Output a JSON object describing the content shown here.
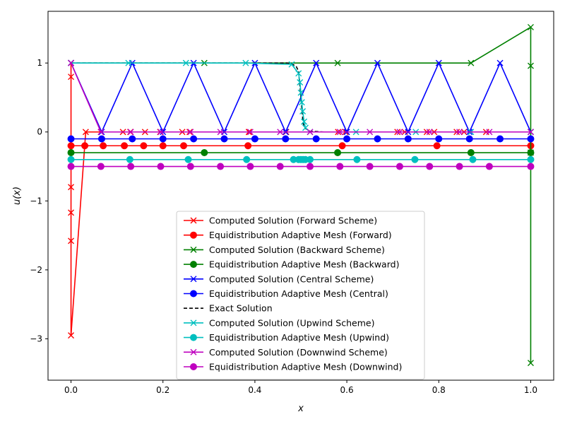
{
  "chart_data": {
    "type": "line",
    "xlabel": "x",
    "ylabel": "u(x)",
    "xlim": [
      -0.05,
      1.05
    ],
    "ylim": [
      -3.6,
      1.75
    ],
    "x_ticks": [
      0.0,
      0.2,
      0.4,
      0.6,
      0.8,
      1.0
    ],
    "x_tick_labels": [
      "0.0",
      "0.2",
      "0.4",
      "0.6",
      "0.8",
      "1.0"
    ],
    "y_ticks": [
      -3,
      -2,
      -1,
      0,
      1
    ],
    "y_tick_labels": [
      "−3",
      "−2",
      "−1",
      "0",
      "1"
    ],
    "grid": false,
    "legend_position": "bottom-center",
    "series": [
      {
        "name": "Computed Solution (Forward Scheme)",
        "color": "#ff0000",
        "marker": "x",
        "dash": "solid",
        "x": [
          0,
          0,
          0,
          0,
          0,
          0,
          0.032,
          0.065,
          0.113,
          0.129,
          0.161,
          0.194,
          0.242,
          0.258,
          0.387,
          0.387,
          0.468,
          0.581,
          0.597,
          0.71,
          0.726,
          0.774,
          0.79,
          0.839,
          0.855,
          0.903,
          1.0
        ],
        "y": [
          1.0,
          0.8,
          -0.8,
          -1.17,
          -1.58,
          -2.95,
          0,
          0,
          0,
          0,
          0,
          0,
          0,
          0,
          0,
          0,
          0,
          0,
          0,
          0,
          0,
          0,
          0,
          0,
          0,
          0,
          0
        ]
      },
      {
        "name": "Equidistribution Adaptive Mesh (Forward)",
        "color": "#ff0000",
        "marker": "o",
        "dash": "solid",
        "x": [
          0,
          0.03,
          0.07,
          0.116,
          0.158,
          0.2,
          0.245,
          0.385,
          0.59,
          0.796,
          1.0
        ],
        "y": [
          -0.2,
          -0.2,
          -0.2,
          -0.2,
          -0.2,
          -0.2,
          -0.2,
          -0.2,
          -0.2,
          -0.2,
          -0.2
        ]
      },
      {
        "name": "Computed Solution (Backward Scheme)",
        "color": "#008000",
        "marker": "x",
        "dash": "solid",
        "x": [
          0,
          0.29,
          0.58,
          0.87,
          1.0,
          1.0,
          1.0,
          1.0
        ],
        "y": [
          1.0,
          1.0,
          1.0,
          1.0,
          1.52,
          0.96,
          -0.3,
          -3.35
        ]
      },
      {
        "name": "Equidistribution Adaptive Mesh (Backward)",
        "color": "#008000",
        "marker": "o",
        "dash": "solid",
        "x": [
          0,
          0.29,
          0.58,
          0.87,
          1.0
        ],
        "y": [
          -0.3,
          -0.3,
          -0.3,
          -0.3,
          -0.3
        ]
      },
      {
        "name": "Computed Solution (Central Scheme)",
        "color": "#0000ff",
        "marker": "x",
        "dash": "solid",
        "x": [
          0,
          0.0667,
          0.1333,
          0.2,
          0.2667,
          0.3333,
          0.4,
          0.4667,
          0.5333,
          0.6,
          0.6667,
          0.7333,
          0.8,
          0.8667,
          0.9333,
          1.0
        ],
        "y": [
          1,
          0,
          1,
          0,
          1,
          0,
          1,
          0,
          1,
          0,
          1,
          0,
          1,
          0,
          1,
          0
        ]
      },
      {
        "name": "Equidistribution Adaptive Mesh (Central)",
        "color": "#0000ff",
        "marker": "o",
        "dash": "solid",
        "x": [
          0,
          0.0667,
          0.1333,
          0.2,
          0.2667,
          0.3333,
          0.4,
          0.4667,
          0.5333,
          0.6,
          0.6667,
          0.7333,
          0.8,
          0.8667,
          0.9333,
          1.0
        ],
        "y": [
          -0.1,
          -0.1,
          -0.1,
          -0.1,
          -0.1,
          -0.1,
          -0.1,
          -0.1,
          -0.1,
          -0.1,
          -0.1,
          -0.1,
          -0.1,
          -0.1,
          -0.1,
          -0.1
        ]
      },
      {
        "name": "Exact Solution",
        "color": "#000000",
        "marker": "none",
        "dash": "dashed",
        "x": [
          0,
          0.45,
          0.47,
          0.48,
          0.49,
          0.495,
          0.5,
          0.505,
          0.51,
          0.52,
          0.55,
          1.0
        ],
        "y": [
          1.0,
          1.0,
          1.0,
          0.99,
          0.95,
          0.88,
          0.5,
          0.12,
          0.05,
          0.01,
          0.0,
          0.0
        ]
      },
      {
        "name": "Computed Solution (Upwind Scheme)",
        "color": "#00bfbf",
        "marker": "x",
        "dash": "solid",
        "x": [
          0,
          0.125,
          0.25,
          0.38,
          0.48,
          0.495,
          0.498,
          0.5,
          0.502,
          0.504,
          0.507,
          0.51,
          0.52,
          0.62,
          0.75,
          0.87,
          1.0
        ],
        "y": [
          1.0,
          1.0,
          1.0,
          1.0,
          0.98,
          0.85,
          0.72,
          0.57,
          0.43,
          0.3,
          0.15,
          0.06,
          0.0,
          0.0,
          0.0,
          0.0,
          0.0
        ]
      },
      {
        "name": "Equidistribution Adaptive Mesh (Upwind)",
        "color": "#00bfbf",
        "marker": "o",
        "dash": "solid",
        "x": [
          0,
          0.128,
          0.255,
          0.382,
          0.484,
          0.495,
          0.5,
          0.505,
          0.51,
          0.52,
          0.622,
          0.748,
          0.874,
          1.0
        ],
        "y": [
          -0.4,
          -0.4,
          -0.4,
          -0.4,
          -0.4,
          -0.4,
          -0.4,
          -0.4,
          -0.4,
          -0.4,
          -0.4,
          -0.4,
          -0.4,
          -0.4
        ]
      },
      {
        "name": "Computed Solution (Downwind Scheme)",
        "color": "#bf00bf",
        "marker": "x",
        "dash": "solid",
        "x": [
          0,
          0.065,
          0.13,
          0.195,
          0.26,
          0.325,
          0.39,
          0.455,
          0.52,
          0.585,
          0.65,
          0.715,
          0.78,
          0.845,
          0.91,
          1.0
        ],
        "y": [
          1.0,
          0,
          0,
          0,
          0,
          0,
          0,
          0,
          0,
          0,
          0,
          0,
          0,
          0,
          0,
          0
        ]
      },
      {
        "name": "Equidistribution Adaptive Mesh (Downwind)",
        "color": "#bf00bf",
        "marker": "o",
        "dash": "solid",
        "x": [
          0,
          0.065,
          0.13,
          0.195,
          0.26,
          0.325,
          0.39,
          0.455,
          0.52,
          0.585,
          0.65,
          0.715,
          0.78,
          0.845,
          0.91,
          1.0
        ],
        "y": [
          -0.5,
          -0.5,
          -0.5,
          -0.5,
          -0.5,
          -0.5,
          -0.5,
          -0.5,
          -0.5,
          -0.5,
          -0.5,
          -0.5,
          -0.5,
          -0.5,
          -0.5,
          -0.5
        ]
      }
    ]
  }
}
